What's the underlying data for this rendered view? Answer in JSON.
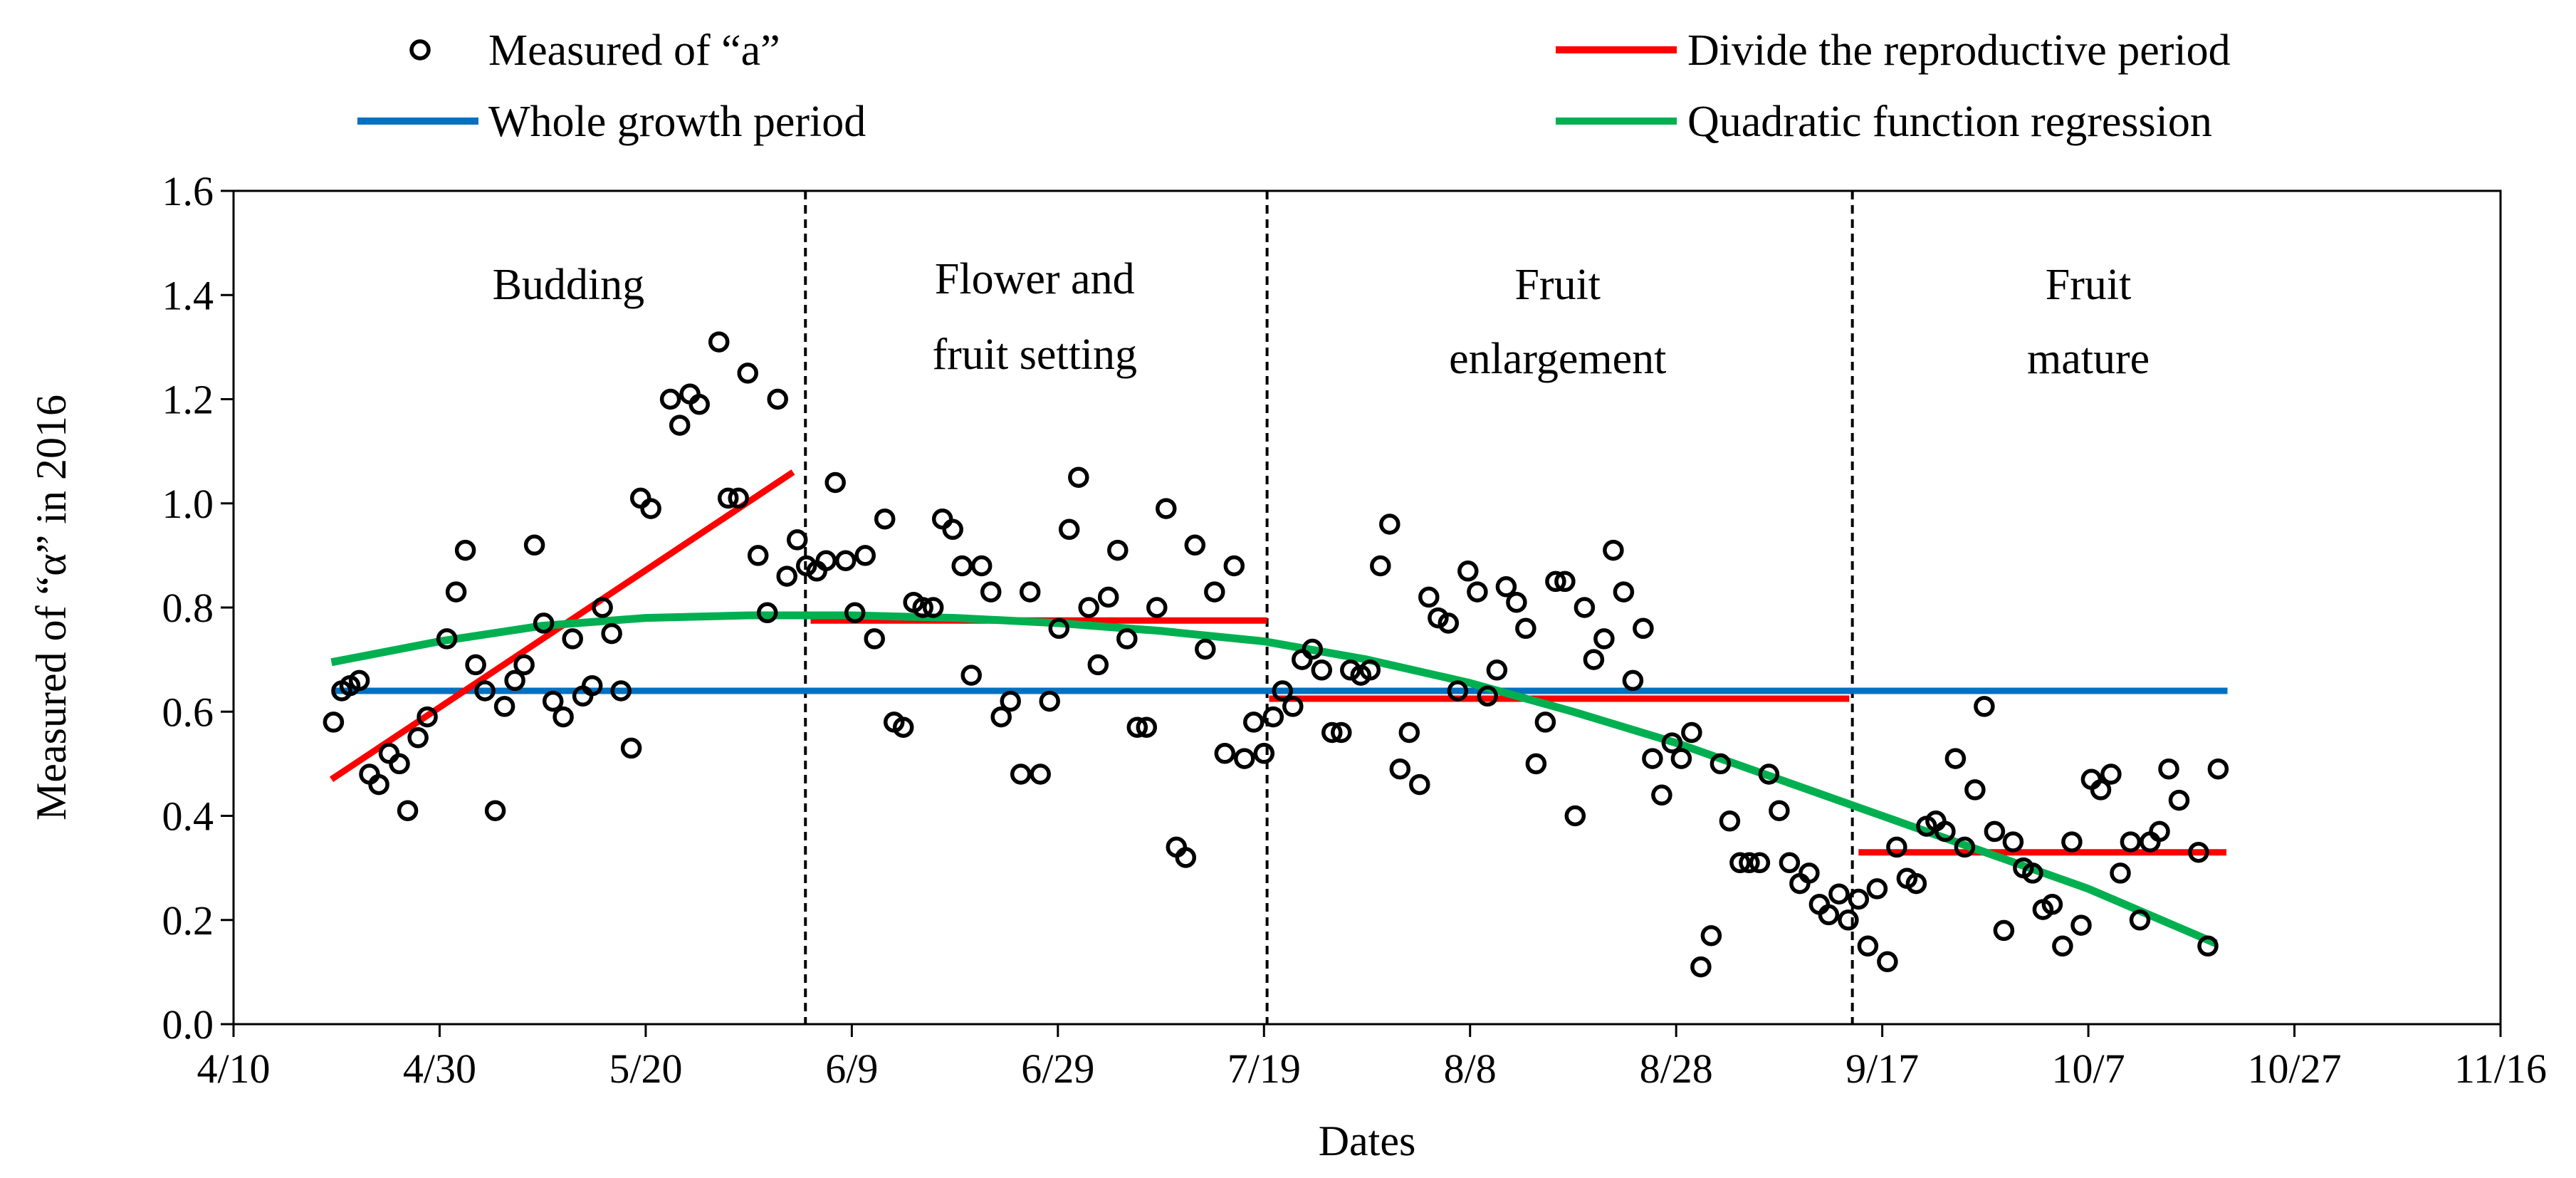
{
  "chart_data": {
    "type": "scatter",
    "title": "",
    "xlabel": "Dates",
    "ylabel": "Measured of “α” in 2016",
    "xaxis": {
      "ticks": [
        {
          "day": 0,
          "label": "4/10"
        },
        {
          "day": 20,
          "label": "4/30"
        },
        {
          "day": 40,
          "label": "5/20"
        },
        {
          "day": 60,
          "label": "6/9"
        },
        {
          "day": 80,
          "label": "6/29"
        },
        {
          "day": 100,
          "label": "7/19"
        },
        {
          "day": 120,
          "label": "8/8"
        },
        {
          "day": 140,
          "label": "8/28"
        },
        {
          "day": 160,
          "label": "9/17"
        },
        {
          "day": 180,
          "label": "10/7"
        },
        {
          "day": 200,
          "label": "10/27"
        },
        {
          "day": 220,
          "label": "11/16"
        }
      ],
      "range": [
        0,
        220
      ],
      "unit": "days after 4/10"
    },
    "yaxis": {
      "range": [
        0,
        1.6
      ],
      "ticks": [
        {
          "value": 0.0,
          "label": "0.0"
        },
        {
          "value": 0.2,
          "label": "0.2"
        },
        {
          "value": 0.4,
          "label": "0.4"
        },
        {
          "value": 0.6,
          "label": "0.6"
        },
        {
          "value": 0.8,
          "label": "0.8"
        },
        {
          "value": 1.0,
          "label": "1.0"
        },
        {
          "value": 1.2,
          "label": "1.2"
        },
        {
          "value": 1.4,
          "label": "1.4"
        },
        {
          "value": 1.6,
          "label": "1.6"
        }
      ]
    },
    "legend": {
      "placement": "top",
      "entries": [
        {
          "label": "Measured of “a”",
          "kind": "marker",
          "color": "#000000"
        },
        {
          "label": "Divide the reproductive period",
          "kind": "line",
          "color": "#ff0000"
        },
        {
          "label": "Whole growth period",
          "kind": "line",
          "color": "#0070c0"
        },
        {
          "label": "Quadratic function regression",
          "kind": "line",
          "color": "#00b050"
        }
      ]
    },
    "stages": [
      {
        "label_lines": [
          "Budding"
        ],
        "start_day": 9.5,
        "end_day": 55.5
      },
      {
        "label_lines": [
          "Flower and",
          "fruit setting"
        ],
        "start_day": 55.5,
        "end_day": 100
      },
      {
        "label_lines": [
          "Fruit",
          "enlargement"
        ],
        "start_day": 100,
        "end_day": 157
      },
      {
        "label_lines": [
          "Fruit",
          "mature"
        ],
        "start_day": 157,
        "end_day": 203
      }
    ],
    "stage_dividers_day": [
      55.5,
      100.3,
      157.1
    ],
    "series": [
      {
        "name": "Measured of “a”",
        "kind": "scatter",
        "color": "#000000",
        "points": [
          [
            9.7,
            0.58
          ],
          [
            10.5,
            0.64
          ],
          [
            11.3,
            0.65
          ],
          [
            12.2,
            0.66
          ],
          [
            13.2,
            0.48
          ],
          [
            14.1,
            0.46
          ],
          [
            15.1,
            0.52
          ],
          [
            16.1,
            0.5
          ],
          [
            16.9,
            0.41
          ],
          [
            17.9,
            0.55
          ],
          [
            18.8,
            0.59
          ],
          [
            20.7,
            0.74
          ],
          [
            21.6,
            0.83
          ],
          [
            22.5,
            0.91
          ],
          [
            23.5,
            0.69
          ],
          [
            24.4,
            0.64
          ],
          [
            25.4,
            0.41
          ],
          [
            26.3,
            0.61
          ],
          [
            27.3,
            0.66
          ],
          [
            28.2,
            0.69
          ],
          [
            29.2,
            0.92
          ],
          [
            30.1,
            0.77
          ],
          [
            31.0,
            0.62
          ],
          [
            32.0,
            0.59
          ],
          [
            32.9,
            0.74
          ],
          [
            33.9,
            0.63
          ],
          [
            34.8,
            0.65
          ],
          [
            35.8,
            0.8
          ],
          [
            36.7,
            0.75
          ],
          [
            37.6,
            0.64
          ],
          [
            38.6,
            0.53
          ],
          [
            39.5,
            1.01
          ],
          [
            40.5,
            0.99
          ],
          [
            42.4,
            1.2
          ],
          [
            43.3,
            1.15
          ],
          [
            44.3,
            1.21
          ],
          [
            45.2,
            1.19
          ],
          [
            47.1,
            1.31
          ],
          [
            48.0,
            1.01
          ],
          [
            49.0,
            1.01
          ],
          [
            49.9,
            1.25
          ],
          [
            50.9,
            0.9
          ],
          [
            51.8,
            0.79
          ],
          [
            52.8,
            1.2
          ],
          [
            53.7,
            0.86
          ],
          [
            54.7,
            0.93
          ],
          [
            55.6,
            0.88
          ],
          [
            56.6,
            0.87
          ],
          [
            57.5,
            0.89
          ],
          [
            58.4,
            1.04
          ],
          [
            59.4,
            0.89
          ],
          [
            60.3,
            0.79
          ],
          [
            61.3,
            0.9
          ],
          [
            62.2,
            0.74
          ],
          [
            63.2,
            0.97
          ],
          [
            64.1,
            0.58
          ],
          [
            65.0,
            0.57
          ],
          [
            66.0,
            0.81
          ],
          [
            66.9,
            0.8
          ],
          [
            67.9,
            0.8
          ],
          [
            68.8,
            0.97
          ],
          [
            69.8,
            0.95
          ],
          [
            70.7,
            0.88
          ],
          [
            71.6,
            0.67
          ],
          [
            72.6,
            0.88
          ],
          [
            73.5,
            0.83
          ],
          [
            74.5,
            0.59
          ],
          [
            75.4,
            0.62
          ],
          [
            76.4,
            0.48
          ],
          [
            77.3,
            0.83
          ],
          [
            78.3,
            0.48
          ],
          [
            79.2,
            0.62
          ],
          [
            80.1,
            0.76
          ],
          [
            81.1,
            0.95
          ],
          [
            82.0,
            1.05
          ],
          [
            83.0,
            0.8
          ],
          [
            83.9,
            0.69
          ],
          [
            84.9,
            0.82
          ],
          [
            85.8,
            0.91
          ],
          [
            86.7,
            0.74
          ],
          [
            87.7,
            0.57
          ],
          [
            88.6,
            0.57
          ],
          [
            89.6,
            0.8
          ],
          [
            90.5,
            0.99
          ],
          [
            91.5,
            0.34
          ],
          [
            92.4,
            0.32
          ],
          [
            93.3,
            0.92
          ],
          [
            94.3,
            0.72
          ],
          [
            95.2,
            0.83
          ],
          [
            96.2,
            0.52
          ],
          [
            97.1,
            0.88
          ],
          [
            98.1,
            0.51
          ],
          [
            99.0,
            0.58
          ],
          [
            100.0,
            0.52
          ],
          [
            100.9,
            0.59
          ],
          [
            101.8,
            0.64
          ],
          [
            102.8,
            0.61
          ],
          [
            103.7,
            0.7
          ],
          [
            104.7,
            0.72
          ],
          [
            105.6,
            0.68
          ],
          [
            106.6,
            0.56
          ],
          [
            107.5,
            0.56
          ],
          [
            108.4,
            0.68
          ],
          [
            109.4,
            0.67
          ],
          [
            110.3,
            0.68
          ],
          [
            111.3,
            0.88
          ],
          [
            112.2,
            0.96
          ],
          [
            113.2,
            0.49
          ],
          [
            114.1,
            0.56
          ],
          [
            115.1,
            0.46
          ],
          [
            116.0,
            0.82
          ],
          [
            116.9,
            0.78
          ],
          [
            117.9,
            0.77
          ],
          [
            118.8,
            0.64
          ],
          [
            119.8,
            0.87
          ],
          [
            120.7,
            0.83
          ],
          [
            121.7,
            0.63
          ],
          [
            122.6,
            0.68
          ],
          [
            123.5,
            0.84
          ],
          [
            124.5,
            0.81
          ],
          [
            125.4,
            0.76
          ],
          [
            126.4,
            0.5
          ],
          [
            127.3,
            0.58
          ],
          [
            128.3,
            0.85
          ],
          [
            129.2,
            0.85
          ],
          [
            130.2,
            0.4
          ],
          [
            131.1,
            0.8
          ],
          [
            132.0,
            0.7
          ],
          [
            133.0,
            0.74
          ],
          [
            133.9,
            0.91
          ],
          [
            134.9,
            0.83
          ],
          [
            135.8,
            0.66
          ],
          [
            136.8,
            0.76
          ],
          [
            137.7,
            0.51
          ],
          [
            138.6,
            0.44
          ],
          [
            139.6,
            0.54
          ],
          [
            140.5,
            0.51
          ],
          [
            141.5,
            0.56
          ],
          [
            142.4,
            0.11
          ],
          [
            143.4,
            0.17
          ],
          [
            144.3,
            0.5
          ],
          [
            145.2,
            0.39
          ],
          [
            146.2,
            0.31
          ],
          [
            147.1,
            0.31
          ],
          [
            148.1,
            0.31
          ],
          [
            149.0,
            0.48
          ],
          [
            150.0,
            0.41
          ],
          [
            151.0,
            0.31
          ],
          [
            152.0,
            0.27
          ],
          [
            152.9,
            0.29
          ],
          [
            153.9,
            0.23
          ],
          [
            154.8,
            0.21
          ],
          [
            155.8,
            0.25
          ],
          [
            156.7,
            0.2
          ],
          [
            157.7,
            0.24
          ],
          [
            158.6,
            0.15
          ],
          [
            159.5,
            0.26
          ],
          [
            160.5,
            0.12
          ],
          [
            161.4,
            0.34
          ],
          [
            162.4,
            0.28
          ],
          [
            163.3,
            0.27
          ],
          [
            164.3,
            0.38
          ],
          [
            165.2,
            0.39
          ],
          [
            166.1,
            0.37
          ],
          [
            167.1,
            0.51
          ],
          [
            168.0,
            0.34
          ],
          [
            169.0,
            0.45
          ],
          [
            169.9,
            0.61
          ],
          [
            170.9,
            0.37
          ],
          [
            171.8,
            0.18
          ],
          [
            172.7,
            0.35
          ],
          [
            173.7,
            0.3
          ],
          [
            174.6,
            0.29
          ],
          [
            175.6,
            0.22
          ],
          [
            176.5,
            0.23
          ],
          [
            177.5,
            0.15
          ],
          [
            178.4,
            0.35
          ],
          [
            179.3,
            0.19
          ],
          [
            180.3,
            0.47
          ],
          [
            181.2,
            0.45
          ],
          [
            182.2,
            0.48
          ],
          [
            183.1,
            0.29
          ],
          [
            184.1,
            0.35
          ],
          [
            185.0,
            0.2
          ],
          [
            186.0,
            0.35
          ],
          [
            186.9,
            0.37
          ],
          [
            187.8,
            0.49
          ],
          [
            188.8,
            0.43
          ],
          [
            190.7,
            0.33
          ],
          [
            191.6,
            0.15
          ],
          [
            192.6,
            0.49
          ]
        ]
      },
      {
        "name": "Whole growth period",
        "kind": "line",
        "color": "#0070c0",
        "points": [
          [
            9.5,
            0.64
          ],
          [
            193.5,
            0.64
          ]
        ]
      },
      {
        "name": "Divide the reproductive period (budding)",
        "kind": "line",
        "color": "#ff0000",
        "points": [
          [
            9.5,
            0.47
          ],
          [
            54.3,
            1.06
          ]
        ]
      },
      {
        "name": "Divide the reproductive period (flower and fruit setting)",
        "kind": "line",
        "color": "#ff0000",
        "points": [
          [
            56.0,
            0.775
          ],
          [
            100.3,
            0.775
          ]
        ]
      },
      {
        "name": "Divide the reproductive period (fruit enlargement)",
        "kind": "line",
        "color": "#ff0000",
        "points": [
          [
            100.5,
            0.625
          ],
          [
            156.8,
            0.625
          ]
        ]
      },
      {
        "name": "Divide the reproductive period (fruit mature)",
        "kind": "line",
        "color": "#ff0000",
        "points": [
          [
            157.7,
            0.33
          ],
          [
            193.4,
            0.33
          ]
        ]
      },
      {
        "name": "Quadratic function regression",
        "kind": "line",
        "color": "#00b050",
        "points": [
          [
            9.5,
            0.695
          ],
          [
            20.0,
            0.735
          ],
          [
            30.0,
            0.765
          ],
          [
            40.0,
            0.78
          ],
          [
            50.0,
            0.785
          ],
          [
            60.0,
            0.785
          ],
          [
            70.0,
            0.78
          ],
          [
            80.0,
            0.77
          ],
          [
            90.0,
            0.755
          ],
          [
            100.0,
            0.735
          ],
          [
            110.0,
            0.7
          ],
          [
            120.0,
            0.655
          ],
          [
            130.0,
            0.6
          ],
          [
            140.0,
            0.54
          ],
          [
            150.0,
            0.47
          ],
          [
            160.0,
            0.4
          ],
          [
            170.0,
            0.33
          ],
          [
            180.0,
            0.26
          ],
          [
            192.4,
            0.155
          ]
        ]
      }
    ]
  }
}
